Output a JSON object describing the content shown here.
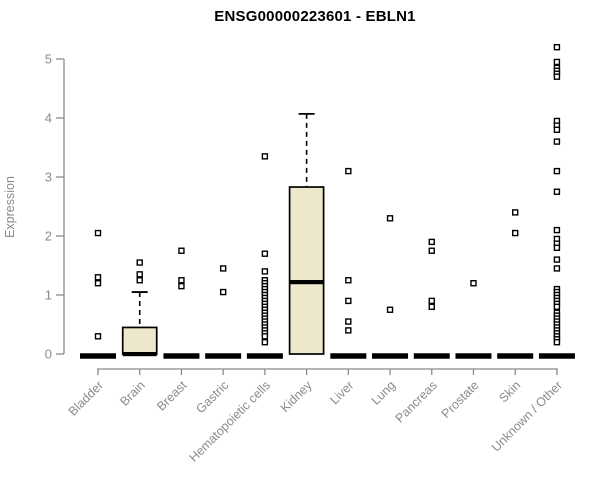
{
  "title": "ENSG00000223601 - EBLN1",
  "chart_data": {
    "type": "box",
    "title": "ENSG00000223601 - EBLN1",
    "xlabel": "",
    "ylabel": "Expression",
    "ylim": [
      0,
      5.3
    ],
    "yticks": [
      0,
      1,
      2,
      3,
      4,
      5
    ],
    "grid": false,
    "legend": false,
    "marker": "open-square",
    "colors": {
      "box_fill": "#EDE8CC",
      "box_stroke": "#000000",
      "median": "#000000",
      "axis": "#8B8B8B",
      "tick_label": "#8B8B8B",
      "title": "#000000",
      "background": "#FFFFFF"
    },
    "categories": [
      {
        "label": "Bladder",
        "box": {
          "q1": 0,
          "median": 0,
          "q3": 0,
          "whisker_low": 0,
          "whisker_high": 0
        },
        "outliers": [
          2.05,
          1.3,
          1.2,
          0.3
        ]
      },
      {
        "label": "Brain",
        "box": {
          "q1": 0,
          "median": 0,
          "q3": 0.45,
          "whisker_low": 0,
          "whisker_high": 1.05
        },
        "outliers": [
          1.55,
          1.35,
          1.25
        ]
      },
      {
        "label": "Breast",
        "box": {
          "q1": 0,
          "median": 0,
          "q3": 0,
          "whisker_low": 0,
          "whisker_high": 0
        },
        "outliers": [
          1.75,
          1.25,
          1.15
        ]
      },
      {
        "label": "Gastric",
        "box": {
          "q1": 0,
          "median": 0,
          "q3": 0,
          "whisker_low": 0,
          "whisker_high": 0
        },
        "outliers": [
          1.45,
          1.05
        ]
      },
      {
        "label": "Hematopoietic cells",
        "box": {
          "q1": 0,
          "median": 0,
          "q3": 0,
          "whisker_low": 0,
          "whisker_high": 0
        },
        "outliers": [
          3.35,
          1.7,
          1.4,
          1.25,
          1.2,
          1.15,
          1.1,
          1.05,
          1.0,
          0.95,
          0.9,
          0.85,
          0.8,
          0.75,
          0.7,
          0.65,
          0.6,
          0.55,
          0.5,
          0.45,
          0.4,
          0.35,
          0.3,
          0.2
        ]
      },
      {
        "label": "Kidney",
        "box": {
          "q1": 0,
          "median": 1.22,
          "q3": 2.83,
          "whisker_low": 0,
          "whisker_high": 4.07
        },
        "outliers": []
      },
      {
        "label": "Liver",
        "box": {
          "q1": 0,
          "median": 0,
          "q3": 0,
          "whisker_low": 0,
          "whisker_high": 0
        },
        "outliers": [
          3.1,
          1.25,
          0.9,
          0.55,
          0.4
        ]
      },
      {
        "label": "Lung",
        "box": {
          "q1": 0,
          "median": 0,
          "q3": 0,
          "whisker_low": 0,
          "whisker_high": 0
        },
        "outliers": [
          2.3,
          0.75
        ]
      },
      {
        "label": "Pancreas",
        "box": {
          "q1": 0,
          "median": 0,
          "q3": 0,
          "whisker_low": 0,
          "whisker_high": 0
        },
        "outliers": [
          1.9,
          1.75,
          0.9,
          0.8
        ]
      },
      {
        "label": "Prostate",
        "box": {
          "q1": 0,
          "median": 0,
          "q3": 0,
          "whisker_low": 0,
          "whisker_high": 0
        },
        "outliers": [
          1.2
        ]
      },
      {
        "label": "Skin",
        "box": {
          "q1": 0,
          "median": 0,
          "q3": 0,
          "whisker_low": 0,
          "whisker_high": 0
        },
        "outliers": [
          2.4,
          2.05
        ]
      },
      {
        "label": "Unknown / Other",
        "box": {
          "q1": 0,
          "median": 0,
          "q3": 0,
          "whisker_low": 0,
          "whisker_high": 0
        },
        "outliers": [
          5.2,
          4.95,
          4.85,
          4.8,
          4.75,
          4.7,
          3.95,
          3.87,
          3.8,
          3.6,
          3.1,
          2.75,
          2.1,
          1.95,
          1.87,
          1.8,
          1.6,
          1.45,
          1.1,
          1.05,
          1.0,
          0.95,
          0.9,
          0.85,
          0.8,
          0.7,
          0.65,
          0.6,
          0.55,
          0.5,
          0.45,
          0.4,
          0.35,
          0.3,
          0.25,
          0.2
        ]
      }
    ]
  }
}
